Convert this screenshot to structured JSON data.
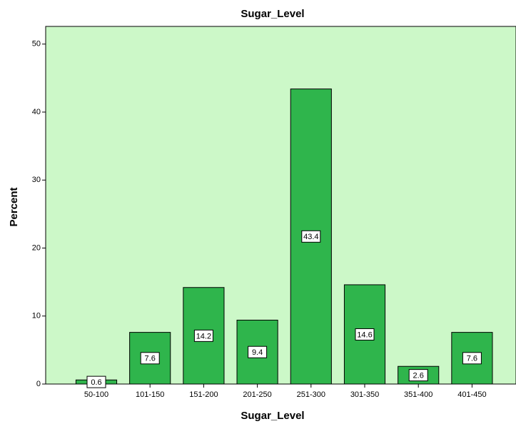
{
  "chart_data": {
    "type": "bar",
    "title": "Sugar_Level",
    "x_label": "Sugar_Level",
    "y_label": "Percent",
    "categories": [
      "50-100",
      "101-150",
      "151-200",
      "201-250",
      "251-300",
      "301-350",
      "351-400",
      "401-450"
    ],
    "values": [
      0.6,
      7.6,
      14.2,
      9.4,
      43.4,
      14.6,
      2.6,
      7.6
    ],
    "color": "#2fb54c",
    "background": "#ccf8c8",
    "ylim": [
      0,
      52.6
    ],
    "yticks": [
      0,
      10,
      20,
      30,
      40,
      50
    ],
    "grid": false
  }
}
